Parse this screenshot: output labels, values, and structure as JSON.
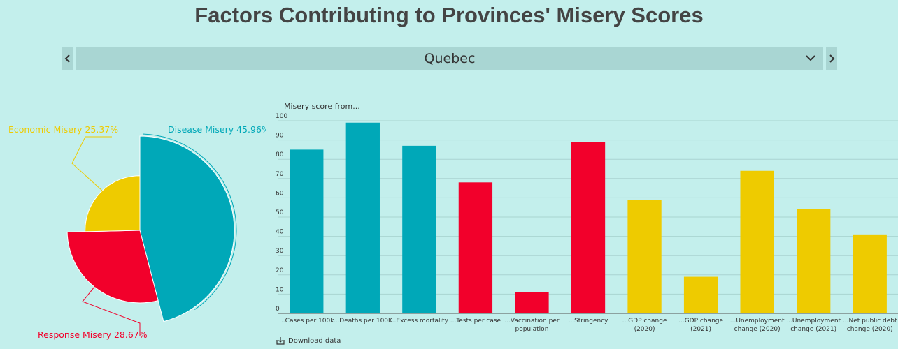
{
  "title": "Factors Contributing to Provinces' Misery Scores",
  "selector": {
    "value": "Quebec"
  },
  "download_label": "Download data",
  "colors": {
    "disease": "#00a8b8",
    "response": "#f2002b",
    "economic": "#eecb00"
  },
  "chart_data": [
    {
      "type": "pie",
      "slices": [
        {
          "label": "Disease Misery 45.96%",
          "value": 45.96,
          "color": "#00a8b8",
          "score": 100
        },
        {
          "label": "Response Misery 28.67%",
          "value": 28.67,
          "color": "#f2002b",
          "score": 77
        },
        {
          "label": "Economic Misery 25.37%",
          "value": 25.37,
          "color": "#eecb00",
          "score": 58
        }
      ]
    },
    {
      "type": "bar",
      "title": "Misery score from...",
      "ylim": [
        0,
        100
      ],
      "yticks": [
        0,
        10,
        20,
        30,
        40,
        50,
        60,
        70,
        80,
        90,
        100
      ],
      "grid": true,
      "categories": [
        {
          "lines": [
            "...Cases per 100k"
          ],
          "value": 85,
          "color": "#00a8b8"
        },
        {
          "lines": [
            "...Deaths per 100K"
          ],
          "value": 99,
          "color": "#00a8b8"
        },
        {
          "lines": [
            "...Excess mortality"
          ],
          "value": 87,
          "color": "#00a8b8"
        },
        {
          "lines": [
            "...Tests per case"
          ],
          "value": 68,
          "color": "#f2002b"
        },
        {
          "lines": [
            "...Vaccination per",
            "population"
          ],
          "value": 11,
          "color": "#f2002b"
        },
        {
          "lines": [
            "...Stringency"
          ],
          "value": 89,
          "color": "#f2002b"
        },
        {
          "lines": [
            "...GDP change",
            "(2020)"
          ],
          "value": 59,
          "color": "#eecb00"
        },
        {
          "lines": [
            "...GDP change",
            "(2021)"
          ],
          "value": 19,
          "color": "#eecb00"
        },
        {
          "lines": [
            "...Unemployment",
            "change (2020)"
          ],
          "value": 74,
          "color": "#eecb00"
        },
        {
          "lines": [
            "...Unemployment",
            "change (2021)"
          ],
          "value": 54,
          "color": "#eecb00"
        },
        {
          "lines": [
            "...Net public debt",
            "change (2020)"
          ],
          "value": 41,
          "color": "#eecb00"
        }
      ]
    }
  ]
}
